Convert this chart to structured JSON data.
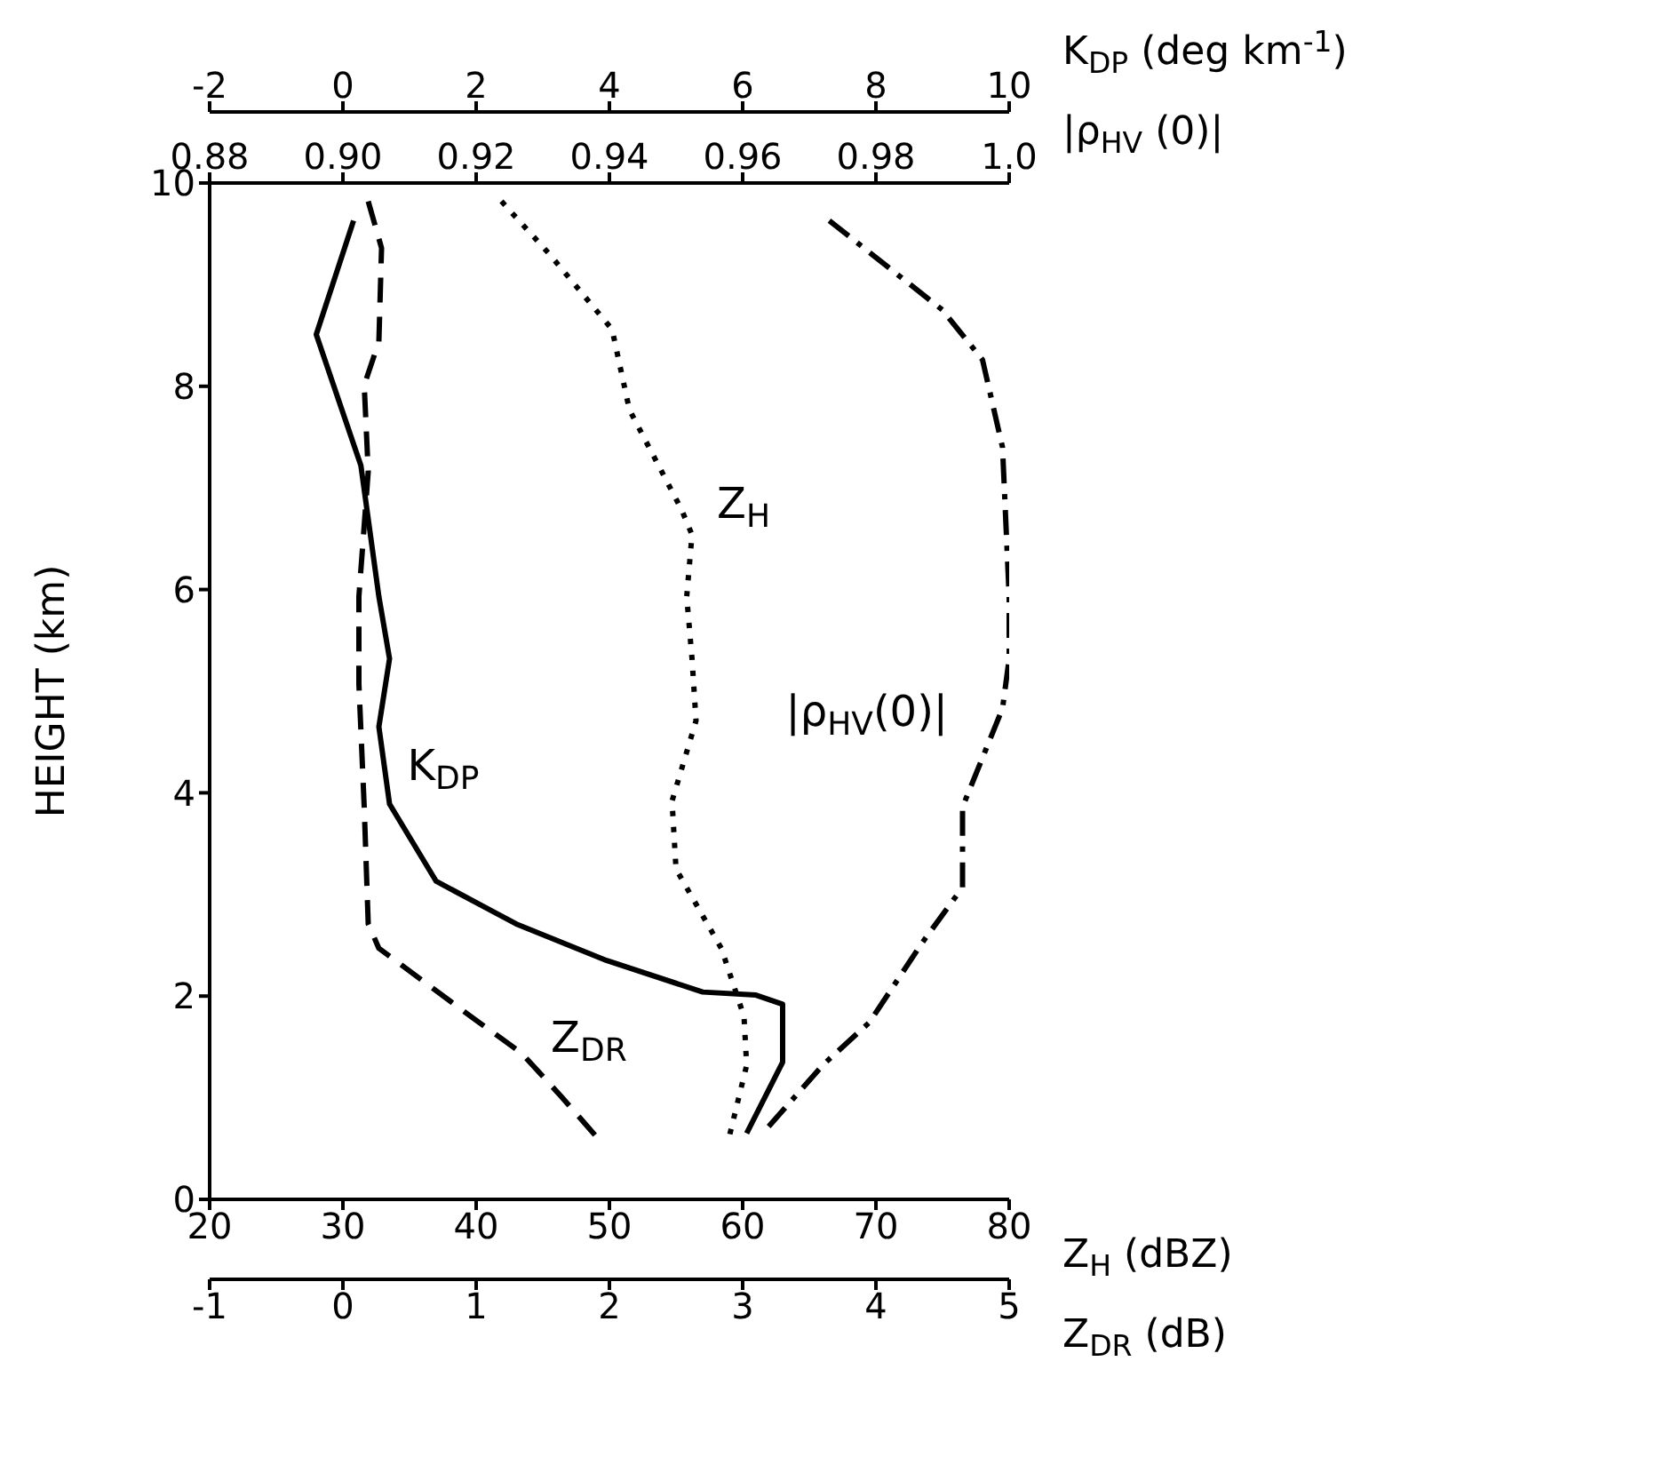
{
  "chart_data": [
    {
      "type": "line",
      "ylabel": "HEIGHT (km)",
      "xlabel": "Z$_{H}$ (dBZ)",
      "x2label": "|ρ$_{HV}$ (0)|",
      "ylim": [
        0,
        10
      ],
      "yticks": [
        0,
        2,
        4,
        6,
        8,
        10
      ],
      "xlim": [
        20,
        80
      ],
      "xticks": [
        20,
        30,
        40,
        50,
        60,
        70,
        80
      ],
      "x2lim": [
        0.88,
        1.0
      ],
      "x2ticks": [
        0.88,
        {
          "value": 0.9,
          "label": "0.90"
        },
        0.92,
        0.94,
        0.96,
        0.98,
        {
          "value": 1.0,
          "label": "1.0"
        }
      ],
      "grid": false,
      "marker": "none",
      "series": [
        {
          "name": "Z$_{H}$",
          "color": "#000000",
          "line_style": "dotted",
          "x": [
            41.9,
            45.5,
            50.2,
            51.5,
            55.4,
            56.2,
            55.8,
            56.2,
            56.5,
            54.7,
            55,
            58.4,
            60.1,
            60.3,
            59
          ],
          "values": [
            9.82,
            9.3,
            8.56,
            7.77,
            6.79,
            6.54,
            5.93,
            5.32,
            4.71,
            3.92,
            3.25,
            2.47,
            1.8,
            1.32,
            0.62
          ]
        },
        {
          "name": "|ρ$_{HV}$(0)|",
          "color": "#000000",
          "axis": "x2",
          "line_style": "dashdot",
          "x": [
            0.973,
            0.99,
            0.996,
            0.999,
            1.0,
            1.0,
            0.999,
            0.993,
            0.993,
            0.987,
            0.979,
            0.972,
            0.963
          ],
          "values": [
            9.63,
            8.75,
            8.26,
            7.4,
            5.93,
            5.32,
            4.83,
            3.86,
            3.07,
            2.53,
            1.74,
            1.32,
            0.65
          ]
        }
      ]
    },
    {
      "type": "line",
      "xlabel": "Z$_{DR}$ (dB)",
      "x2label": "K$_{DP}$ (deg km$^{-1}$)",
      "ylim": [
        0,
        10
      ],
      "tick_labels": "x",
      "xlim": [
        -1,
        5
      ],
      "xticks": [
        -1,
        0,
        1,
        2,
        3,
        4,
        5
      ],
      "x2lim": [
        -2,
        10
      ],
      "x2ticks": [
        -2,
        0,
        2,
        4,
        6,
        8,
        10
      ],
      "grid": false,
      "marker": "none",
      "series": [
        {
          "name": "K$_{DP}$",
          "color": "#000000",
          "axis": "x2",
          "line_style": "solid",
          "x": [
            0.16,
            -0.4,
            0.27,
            0.54,
            0.7,
            0.54,
            0.7,
            1.4,
            2.6,
            3.96,
            5.4,
            6.2,
            6.6,
            6.6,
            6.06
          ],
          "values": [
            9.63,
            8.51,
            7.22,
            5.93,
            5.32,
            4.65,
            3.89,
            3.13,
            2.71,
            2.35,
            2.04,
            2.01,
            1.92,
            1.35,
            0.65
          ]
        },
        {
          "name": "Z$_{DR}$",
          "color": "#000000",
          "line_style": "dashed",
          "x": [
            0.19,
            0.29,
            0.27,
            0.16,
            0.19,
            0.12,
            0.12,
            0.16,
            0.19,
            0.27,
            0.96,
            1.34,
            1.64,
            1.9
          ],
          "values": [
            9.82,
            9.36,
            8.44,
            8.01,
            7.16,
            5.93,
            5.07,
            3.86,
            2.71,
            2.47,
            1.8,
            1.44,
            1.01,
            0.62
          ]
        }
      ]
    }
  ]
}
